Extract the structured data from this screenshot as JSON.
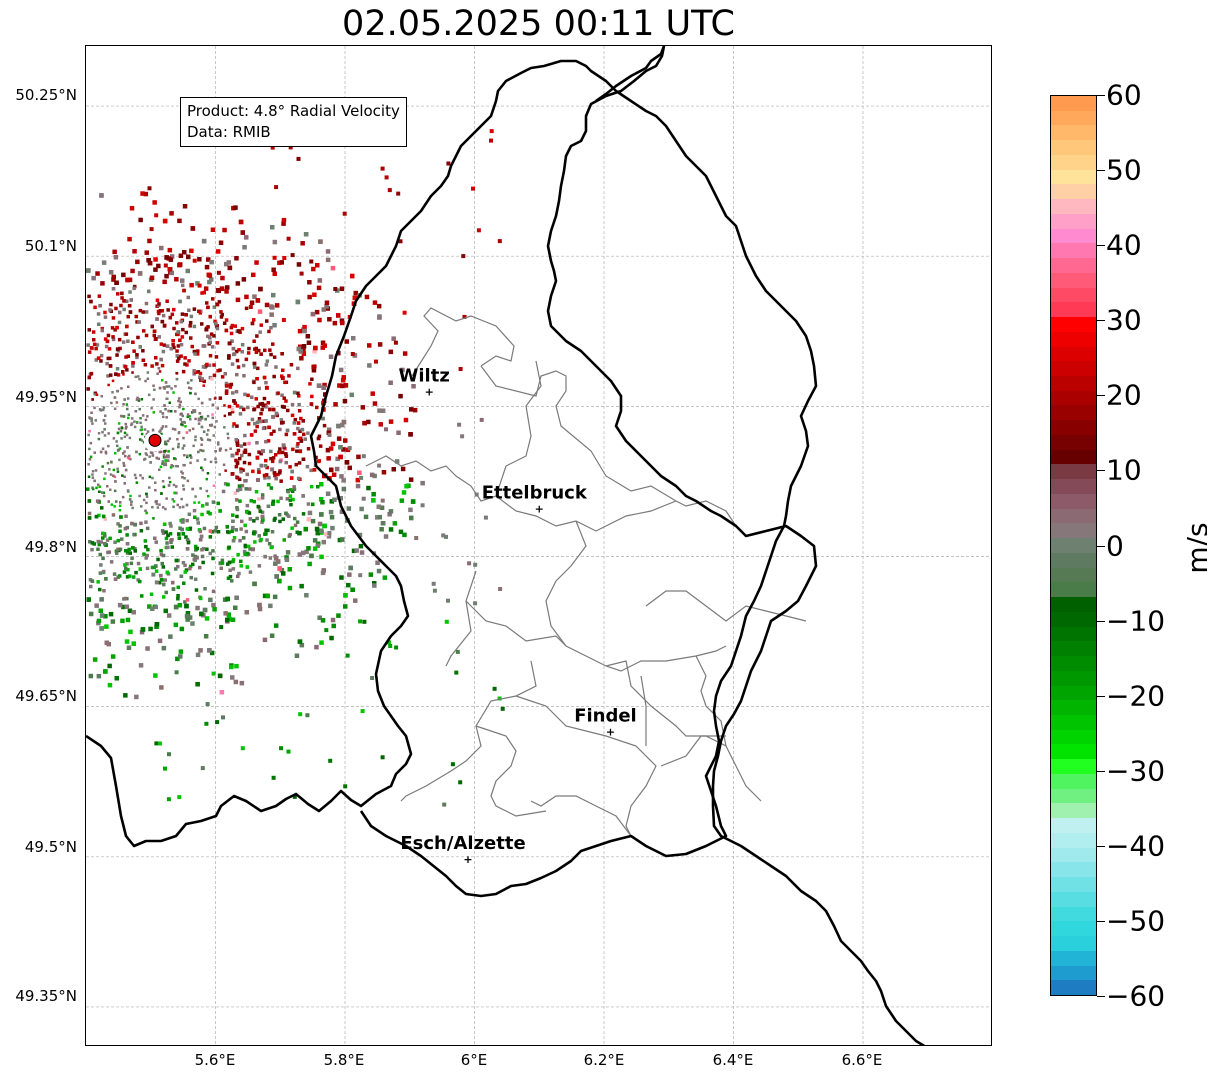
{
  "title": "02.05.2025 00:11 UTC",
  "info": {
    "product": "Product: 4.8° Radial Velocity",
    "data": "Data: RMIB"
  },
  "lat_ticks": [
    "50.25°N",
    "50.1°N",
    "49.95°N",
    "49.8°N",
    "49.65°N",
    "49.5°N",
    "49.35°N"
  ],
  "lon_ticks": [
    "5.6°E",
    "5.8°E",
    "6°E",
    "6.2°E",
    "6.4°E",
    "6.6°E"
  ],
  "cities": [
    {
      "name": "Wiltz",
      "lon": 5.93,
      "lat": 49.965
    },
    {
      "name": "Ettelbruck",
      "lon": 6.1,
      "lat": 49.848
    },
    {
      "name": "Findel",
      "lon": 6.21,
      "lat": 49.625
    },
    {
      "name": "Esch/Alzette",
      "lon": 5.99,
      "lat": 49.498
    }
  ],
  "radar_site": {
    "lon": 5.505,
    "lat": 49.915
  },
  "colorbar": {
    "label": "m/s",
    "min": -60,
    "max": 60,
    "ticks": [
      "60",
      "50",
      "40",
      "30",
      "20",
      "10",
      "0",
      "−10",
      "−20",
      "−30",
      "−40",
      "−50",
      "−60"
    ],
    "colors": [
      "#ff9a4f",
      "#ffa85c",
      "#ffb86a",
      "#ffc77a",
      "#ffd48a",
      "#ffe39a",
      "#ffd0a6",
      "#ffb8c0",
      "#ffa0c8",
      "#ff8ad0",
      "#ff78b0",
      "#ff6890",
      "#ff5a78",
      "#ff4a66",
      "#ff3a55",
      "#ff0000",
      "#ee0000",
      "#dd0000",
      "#cc0000",
      "#bb0000",
      "#aa0000",
      "#990000",
      "#880000",
      "#770000",
      "#660000",
      "#7a3a44",
      "#844a58",
      "#8c5a68",
      "#8c6a74",
      "#86787a",
      "#6e8070",
      "#5e7a60",
      "#567a54",
      "#4a7c4a",
      "#006000",
      "#006800",
      "#007400",
      "#008000",
      "#008c00",
      "#009800",
      "#00a400",
      "#00b400",
      "#00c400",
      "#00d400",
      "#00e400",
      "#20ff20",
      "#50f460",
      "#70f080",
      "#a0f0b0",
      "#c0f0f0",
      "#b0eef0",
      "#a0eaee",
      "#88e6ea",
      "#70e2e6",
      "#58dee2",
      "#40dadf",
      "#30d8de",
      "#2ad0dc",
      "#22b4d6",
      "#1e9cd0",
      "#1e7cc2"
    ]
  }
}
